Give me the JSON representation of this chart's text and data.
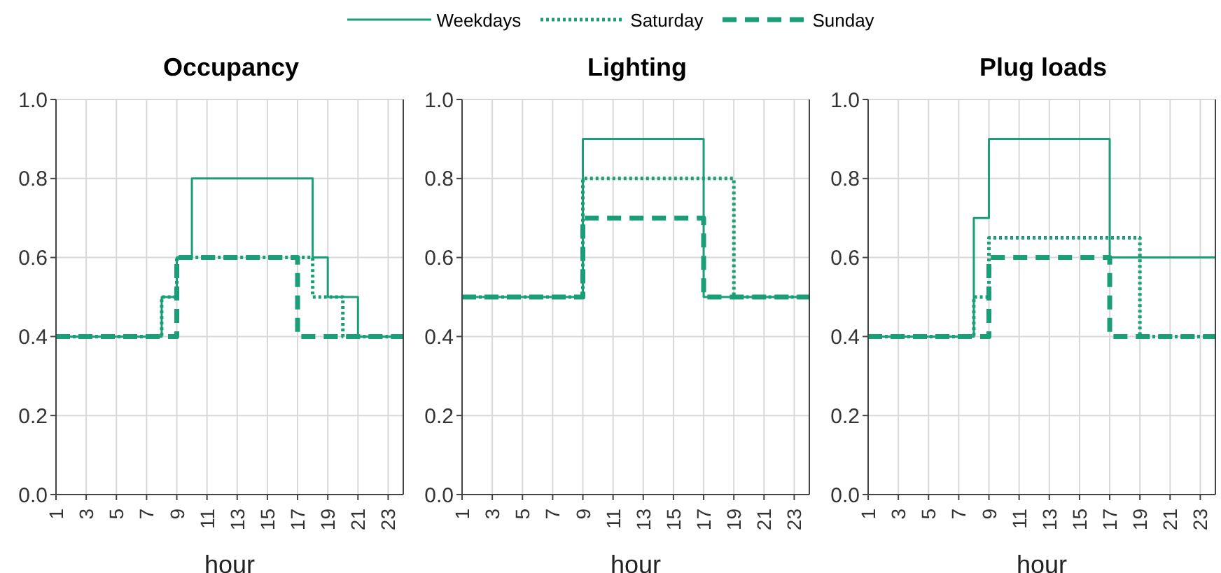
{
  "chart_data": [
    {
      "type": "step",
      "title": "Occupancy",
      "xlabel": "hour",
      "legend": "top",
      "grid": true,
      "marker": "none",
      "x": [
        1,
        2,
        3,
        4,
        5,
        6,
        7,
        8,
        9,
        10,
        11,
        12,
        13,
        14,
        15,
        16,
        17,
        18,
        19,
        20,
        21,
        22,
        23,
        24
      ],
      "xlim": [
        1,
        24
      ],
      "xticks": [
        1,
        3,
        5,
        7,
        9,
        11,
        13,
        15,
        17,
        19,
        21,
        23
      ],
      "ylim": [
        0,
        1
      ],
      "yticks": [
        {
          "value": 0,
          "label": "0.0"
        },
        {
          "value": 0.2,
          "label": "0.2"
        },
        {
          "value": 0.4,
          "label": "0.4"
        },
        {
          "value": 0.6,
          "label": "0.6"
        },
        {
          "value": 0.8,
          "label": "0.8"
        },
        {
          "value": 1,
          "label": "1.0"
        }
      ],
      "series": [
        {
          "name": "Weekdays",
          "color": "#1a9e77",
          "line_style": "solid",
          "values": [
            0.4,
            0.4,
            0.4,
            0.4,
            0.4,
            0.4,
            0.4,
            0.5,
            0.6,
            0.8,
            0.8,
            0.8,
            0.8,
            0.8,
            0.8,
            0.8,
            0.8,
            0.6,
            0.5,
            0.5,
            0.4,
            0.4,
            0.4,
            0.4
          ]
        },
        {
          "name": "Saturday",
          "color": "#1a9e77",
          "line_style": "dotted",
          "values": [
            0.4,
            0.4,
            0.4,
            0.4,
            0.4,
            0.4,
            0.4,
            0.5,
            0.6,
            0.6,
            0.6,
            0.6,
            0.6,
            0.6,
            0.6,
            0.6,
            0.6,
            0.5,
            0.5,
            0.4,
            0.4,
            0.4,
            0.4,
            0.4
          ]
        },
        {
          "name": "Sunday",
          "color": "#1a9e77",
          "line_style": "dashed",
          "values": [
            0.4,
            0.4,
            0.4,
            0.4,
            0.4,
            0.4,
            0.4,
            0.4,
            0.6,
            0.6,
            0.6,
            0.6,
            0.6,
            0.6,
            0.6,
            0.6,
            0.4,
            0.4,
            0.4,
            0.4,
            0.4,
            0.4,
            0.4,
            0.4
          ]
        }
      ]
    },
    {
      "type": "step",
      "title": "Lighting",
      "xlabel": "hour",
      "grid": true,
      "marker": "none",
      "x": [
        1,
        2,
        3,
        4,
        5,
        6,
        7,
        8,
        9,
        10,
        11,
        12,
        13,
        14,
        15,
        16,
        17,
        18,
        19,
        20,
        21,
        22,
        23,
        24
      ],
      "xlim": [
        1,
        24
      ],
      "xticks": [
        1,
        3,
        5,
        7,
        9,
        11,
        13,
        15,
        17,
        19,
        21,
        23
      ],
      "ylim": [
        0,
        1
      ],
      "yticks": [
        {
          "value": 0,
          "label": "0.0"
        },
        {
          "value": 0.2,
          "label": "0.2"
        },
        {
          "value": 0.4,
          "label": "0.4"
        },
        {
          "value": 0.6,
          "label": "0.6"
        },
        {
          "value": 0.8,
          "label": "0.8"
        },
        {
          "value": 1,
          "label": "1.0"
        }
      ],
      "series": [
        {
          "color": "#1a9e77",
          "line_style": "solid",
          "values": [
            0.5,
            0.5,
            0.5,
            0.5,
            0.5,
            0.5,
            0.5,
            0.5,
            0.9,
            0.9,
            0.9,
            0.9,
            0.9,
            0.9,
            0.9,
            0.9,
            0.5,
            0.5,
            0.5,
            0.5,
            0.5,
            0.5,
            0.5,
            0.5
          ]
        },
        {
          "color": "#1a9e77",
          "line_style": "dotted",
          "values": [
            0.5,
            0.5,
            0.5,
            0.5,
            0.5,
            0.5,
            0.5,
            0.5,
            0.8,
            0.8,
            0.8,
            0.8,
            0.8,
            0.8,
            0.8,
            0.8,
            0.8,
            0.8,
            0.5,
            0.5,
            0.5,
            0.5,
            0.5,
            0.5
          ]
        },
        {
          "color": "#1a9e77",
          "line_style": "dashed",
          "values": [
            0.5,
            0.5,
            0.5,
            0.5,
            0.5,
            0.5,
            0.5,
            0.5,
            0.7,
            0.7,
            0.7,
            0.7,
            0.7,
            0.7,
            0.7,
            0.7,
            0.5,
            0.5,
            0.5,
            0.5,
            0.5,
            0.5,
            0.5,
            0.5
          ]
        }
      ]
    },
    {
      "type": "step",
      "title": "Plug loads",
      "xlabel": "hour",
      "grid": true,
      "marker": "none",
      "x": [
        1,
        2,
        3,
        4,
        5,
        6,
        7,
        8,
        9,
        10,
        11,
        12,
        13,
        14,
        15,
        16,
        17,
        18,
        19,
        20,
        21,
        22,
        23,
        24
      ],
      "xlim": [
        1,
        24
      ],
      "xticks": [
        1,
        3,
        5,
        7,
        9,
        11,
        13,
        15,
        17,
        19,
        21,
        23
      ],
      "ylim": [
        0,
        1
      ],
      "yticks": [
        {
          "value": 0,
          "label": "0.0"
        },
        {
          "value": 0.2,
          "label": "0.2"
        },
        {
          "value": 0.4,
          "label": "0.4"
        },
        {
          "value": 0.6,
          "label": "0.6"
        },
        {
          "value": 0.8,
          "label": "0.8"
        },
        {
          "value": 1,
          "label": "1.0"
        }
      ],
      "series": [
        {
          "color": "#1a9e77",
          "line_style": "solid",
          "values": [
            0.4,
            0.4,
            0.4,
            0.4,
            0.4,
            0.4,
            0.4,
            0.7,
            0.9,
            0.9,
            0.9,
            0.9,
            0.9,
            0.9,
            0.9,
            0.9,
            0.6,
            0.6,
            0.6,
            0.6,
            0.6,
            0.6,
            0.6,
            0.6
          ]
        },
        {
          "color": "#1a9e77",
          "line_style": "dotted",
          "values": [
            0.4,
            0.4,
            0.4,
            0.4,
            0.4,
            0.4,
            0.4,
            0.5,
            0.65,
            0.65,
            0.65,
            0.65,
            0.65,
            0.65,
            0.65,
            0.65,
            0.65,
            0.65,
            0.4,
            0.4,
            0.4,
            0.4,
            0.4,
            0.4
          ]
        },
        {
          "color": "#1a9e77",
          "line_style": "dashed",
          "values": [
            0.4,
            0.4,
            0.4,
            0.4,
            0.4,
            0.4,
            0.4,
            0.4,
            0.6,
            0.6,
            0.6,
            0.6,
            0.6,
            0.6,
            0.6,
            0.6,
            0.4,
            0.4,
            0.4,
            0.4,
            0.4,
            0.4,
            0.4,
            0.4
          ]
        }
      ]
    }
  ]
}
